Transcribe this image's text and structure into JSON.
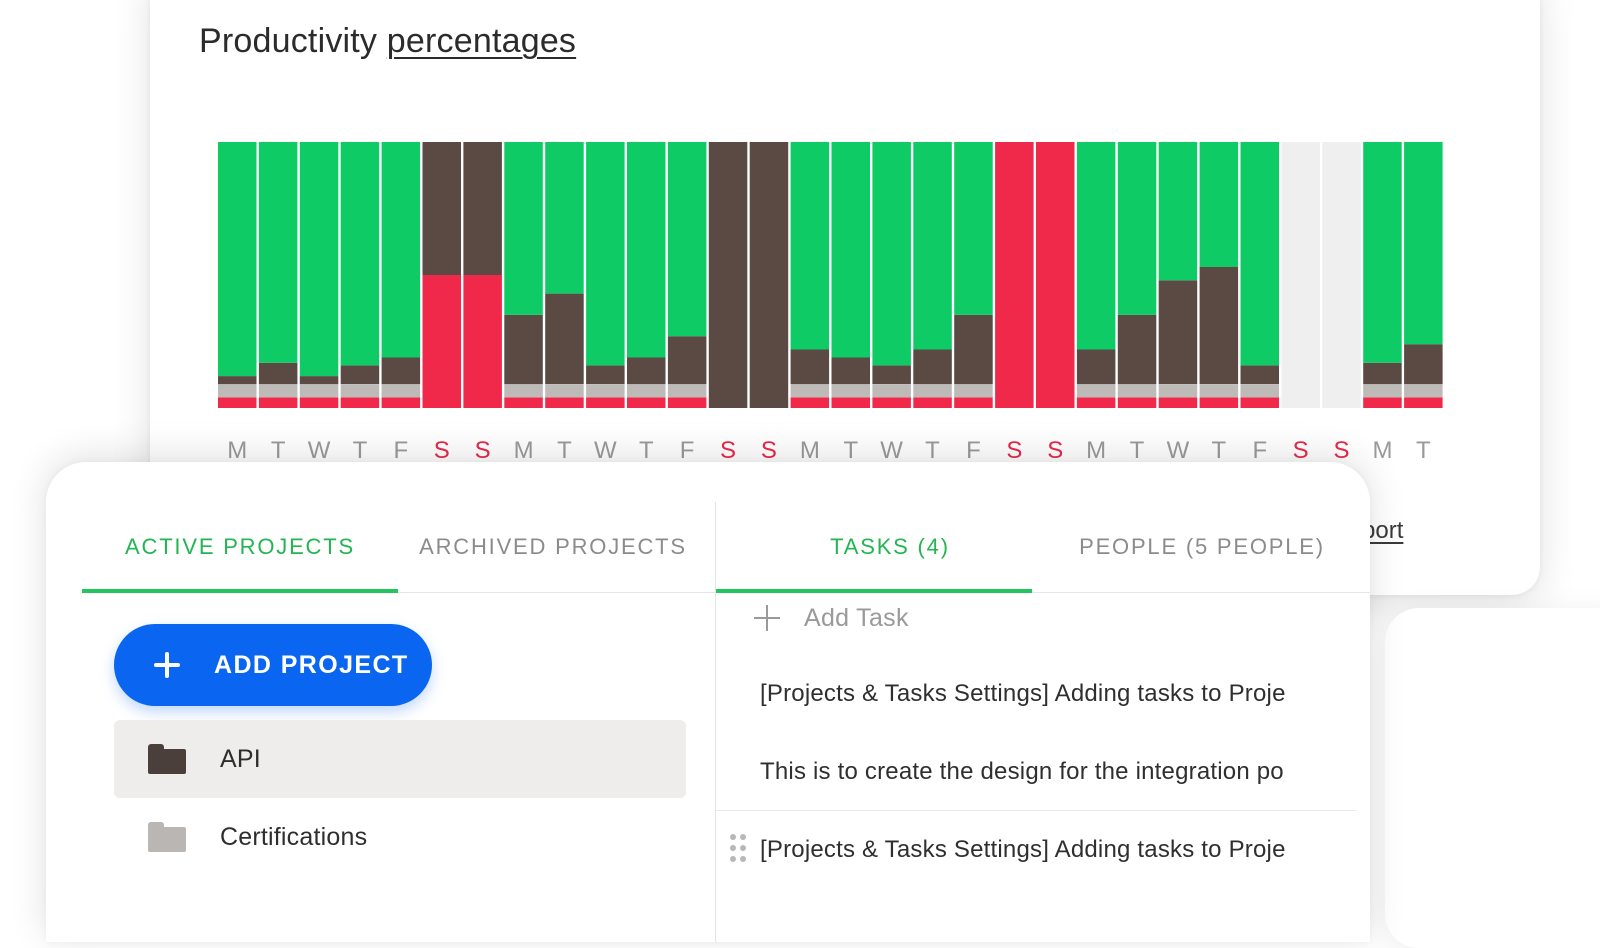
{
  "chart_card": {
    "title_plain": "Productivity",
    "title_link": "percentages",
    "report_link": "vity report"
  },
  "chart_data": {
    "type": "bar",
    "stacked": true,
    "title": "Productivity percentages",
    "categories": [
      "M",
      "T",
      "W",
      "T",
      "F",
      "S",
      "S",
      "M",
      "T",
      "W",
      "T",
      "F",
      "S",
      "S",
      "M",
      "T",
      "W",
      "T",
      "F",
      "S",
      "S",
      "M",
      "T",
      "W",
      "T",
      "F",
      "S",
      "S",
      "M",
      "T"
    ],
    "weekend_label_color": "#e8294a",
    "weekday_label_color": "#9a9a9a",
    "segment_colors": {
      "unproductive": "#f0284a",
      "idle": "#bdbab8",
      "neutral": "#5a4a43",
      "productive": "#0ecb66",
      "no_data": "#efefef"
    },
    "ylim": [
      0,
      100
    ],
    "series": [
      {
        "values_key": "unproductive",
        "values": [
          4,
          4,
          4,
          4,
          4,
          50,
          50,
          4,
          4,
          4,
          4,
          4,
          0,
          0,
          4,
          4,
          4,
          4,
          4,
          100,
          100,
          4,
          4,
          4,
          4,
          4,
          0,
          0,
          4,
          4
        ]
      },
      {
        "values_key": "idle",
        "values": [
          5,
          5,
          5,
          5,
          5,
          0,
          0,
          5,
          5,
          5,
          5,
          5,
          0,
          0,
          5,
          5,
          5,
          5,
          5,
          0,
          0,
          5,
          5,
          5,
          5,
          5,
          0,
          0,
          5,
          5
        ]
      },
      {
        "values_key": "neutral",
        "values": [
          3,
          8,
          3,
          7,
          10,
          50,
          50,
          26,
          34,
          7,
          10,
          18,
          100,
          100,
          13,
          10,
          7,
          13,
          26,
          0,
          0,
          13,
          26,
          39,
          44,
          7,
          0,
          0,
          8,
          15
        ]
      },
      {
        "values_key": "productive",
        "values": [
          88,
          83,
          88,
          84,
          81,
          0,
          0,
          65,
          57,
          84,
          81,
          73,
          0,
          0,
          78,
          81,
          84,
          78,
          65,
          0,
          0,
          78,
          65,
          52,
          47,
          84,
          0,
          0,
          83,
          76
        ]
      },
      {
        "values_key": "no_data",
        "values": [
          0,
          0,
          0,
          0,
          0,
          0,
          0,
          0,
          0,
          0,
          0,
          0,
          0,
          0,
          0,
          0,
          0,
          0,
          0,
          0,
          0,
          0,
          0,
          0,
          0,
          0,
          100,
          100,
          0,
          0
        ]
      }
    ],
    "grid": false,
    "legend": "none"
  },
  "projects_tabs": [
    {
      "label": "ACTIVE PROJECTS",
      "active": true
    },
    {
      "label": "ARCHIVED PROJECTS",
      "active": false
    }
  ],
  "tasks_tabs": [
    {
      "label": "TASKS (4)",
      "active": true
    },
    {
      "label": "PEOPLE (5 PEOPLE)",
      "active": false
    }
  ],
  "add_project_label": "ADD PROJECT",
  "projects": [
    {
      "name": "API",
      "selected": true,
      "icon": "folder-icon"
    },
    {
      "name": "Certifications",
      "selected": false,
      "icon": "folder-icon"
    }
  ],
  "add_task_label": "Add Task",
  "tasks": [
    {
      "text": "[Projects & Tasks Settings] Adding tasks to Proje"
    },
    {
      "text": "This is to create the design for the integration po"
    },
    {
      "text": "[Projects & Tasks Settings] Adding tasks to Proje"
    }
  ],
  "colors": {
    "accent_green": "#22c55e",
    "primary_blue": "#0a66f0"
  }
}
